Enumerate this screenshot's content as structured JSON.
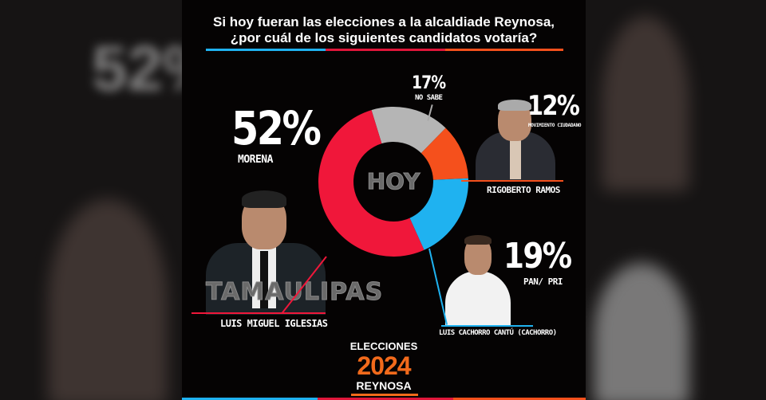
{
  "title_line1": "Si hoy fueran las elecciones a la alcaldiade Reynosa,",
  "title_line2": "¿por cuál de los siguientes candidatos votaría?",
  "watermark": [
    "HOY",
    "TAMAULIPAS"
  ],
  "candidates": {
    "morena": {
      "pct": "52%",
      "party": "MORENA",
      "name": "LUIS MIGUEL IGLESIAS"
    },
    "no_sabe": {
      "pct": "17%",
      "party": "NO SABE"
    },
    "mc": {
      "pct": "12%",
      "party": "MOVIMIENTO CIUDADANO",
      "name": "RIGOBERTO RAMOS"
    },
    "pan": {
      "pct": "19%",
      "party": "PAN/ PRI",
      "name": "LUIS CACHORRO CANTÚ (CACHORRO)"
    }
  },
  "footer": {
    "line1": "ELECCIONES",
    "year": "2024",
    "city": "REYNOSA"
  },
  "colors": {
    "red": "#f0173a",
    "gray": "#b5b5b5",
    "orange": "#f5501c",
    "blue": "#1fb2f0",
    "year": "#f26a1b"
  },
  "chart_data": {
    "type": "pie",
    "title": "Si hoy fueran las elecciones a la alcaldiade Reynosa, ¿por cuál de los siguientes candidatos votaría?",
    "donut": true,
    "categories": [
      "NO SABE",
      "MOVIMIENTO CIUDADANO",
      "PAN/ PRI",
      "MORENA"
    ],
    "values": [
      17,
      12,
      19,
      52
    ],
    "colors": [
      "#b5b5b5",
      "#f5501c",
      "#1fb2f0",
      "#f0173a"
    ],
    "start_angle_deg": -17
  }
}
